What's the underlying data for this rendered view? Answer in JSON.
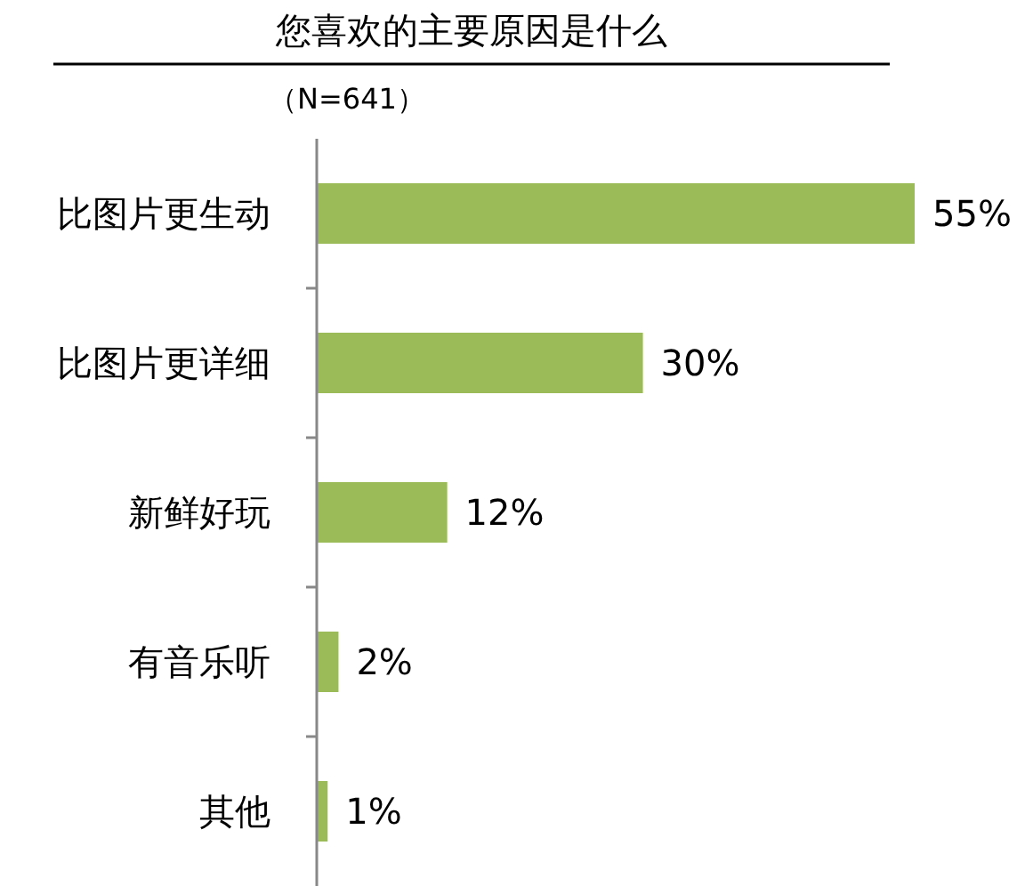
{
  "chart_data": {
    "type": "bar",
    "orientation": "horizontal",
    "title": "您喜欢的主要原因是什么",
    "subtitle": "（N=641）",
    "categories": [
      "比图片更生动",
      "比图片更详细",
      "新鲜好玩",
      "有音乐听",
      "其他"
    ],
    "values": [
      55,
      30,
      12,
      2,
      1
    ],
    "value_labels": [
      "55%",
      "30%",
      "12%",
      "2%",
      "1%"
    ],
    "color": "#9bbb59"
  }
}
